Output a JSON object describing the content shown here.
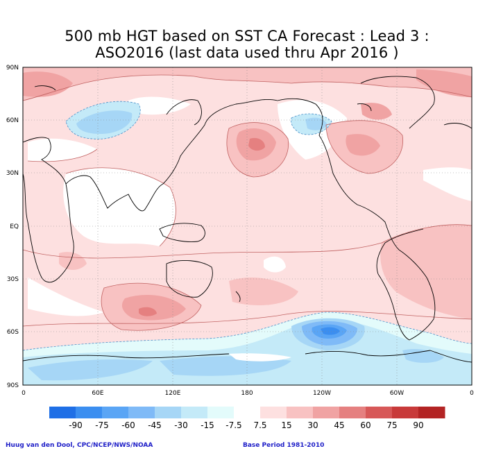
{
  "title": {
    "line1": "500 mb HGT based on SST CA Forecast : Lead 3 :",
    "line2": "ASO2016 (last data used thru Apr 2016 )"
  },
  "map": {
    "lat_labels": [
      "90N",
      "60N",
      "30N",
      "EQ",
      "30S",
      "60S",
      "90S"
    ],
    "lon_labels": [
      "0",
      "60E",
      "120E",
      "180",
      "120W",
      "60W",
      "0"
    ]
  },
  "colorbar": {
    "labels": [
      "-90",
      "-75",
      "-60",
      "-45",
      "-30",
      "-15",
      "-7.5",
      "7.5",
      "15",
      "30",
      "45",
      "60",
      "75",
      "90"
    ],
    "colors": [
      "#1f6fe6",
      "#3b8ef0",
      "#5aa5f5",
      "#7fbaf7",
      "#a6d6f6",
      "#c4eaf8",
      "#e3fbfb",
      "#ffffff",
      "#fde0e0",
      "#f8c2c2",
      "#f0a3a3",
      "#e58080",
      "#d75858",
      "#c83a3a",
      "#b32424"
    ]
  },
  "footer": {
    "credit": "Huug van den Dool, CPC/NCEP/NWS/NOAA",
    "base_period": "Base Period 1981-2010"
  }
}
